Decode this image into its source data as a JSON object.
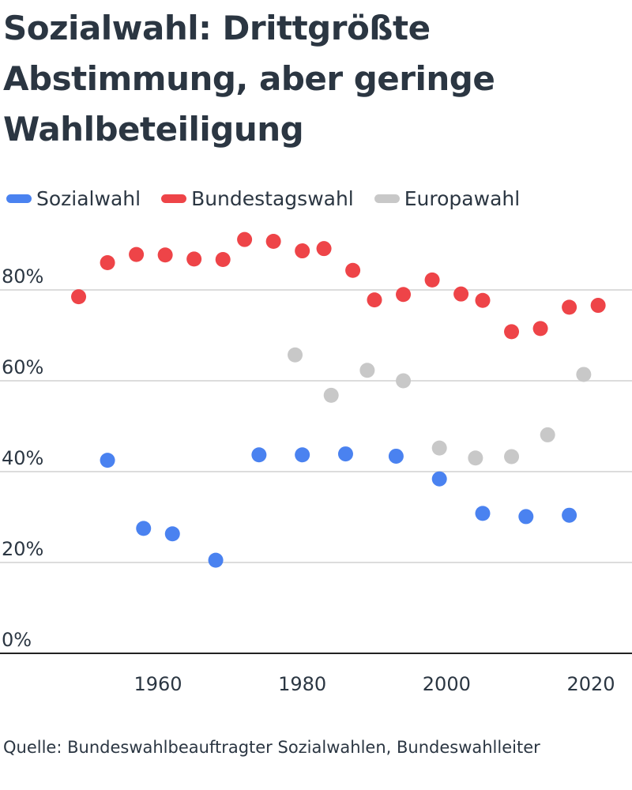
{
  "title": "Sozialwahl: Drittgrößte Abstimmung, aber geringe Wahlbeteiligung",
  "source": "Quelle: Bundeswahlbeauftragter Sozialwahlen, Bundeswahlleiter",
  "colors": {
    "Sozialwahl": "#4a82f0",
    "Bundestagswahl": "#ee4448",
    "Europawahl": "#c8c8c8",
    "grid": "#dcdcdc",
    "axis": "#222222"
  },
  "chart_data": {
    "type": "scatter",
    "title": "Sozialwahl: Drittgrößte Abstimmung, aber geringe Wahlbeteiligung",
    "xlabel": "",
    "ylabel": "",
    "xlim": [
      1945,
      2023
    ],
    "ylim": [
      0,
      90
    ],
    "x_ticks": [
      1960,
      1980,
      2000,
      2020
    ],
    "y_ticks": [
      {
        "value": 0,
        "label": "0%"
      },
      {
        "value": 20,
        "label": "20%"
      },
      {
        "value": 40,
        "label": "40%"
      },
      {
        "value": 60,
        "label": "60%"
      },
      {
        "value": 80,
        "label": "80%"
      }
    ],
    "grid": true,
    "legend_position": "top-left",
    "series": [
      {
        "name": "Sozialwahl",
        "points": [
          {
            "x": 1953,
            "y": 42.5
          },
          {
            "x": 1958,
            "y": 27.5
          },
          {
            "x": 1962,
            "y": 26.3
          },
          {
            "x": 1968,
            "y": 20.5
          },
          {
            "x": 1974,
            "y": 43.7
          },
          {
            "x": 1980,
            "y": 43.7
          },
          {
            "x": 1986,
            "y": 43.9
          },
          {
            "x": 1993,
            "y": 43.4
          },
          {
            "x": 1999,
            "y": 38.4
          },
          {
            "x": 2005,
            "y": 30.8
          },
          {
            "x": 2011,
            "y": 30.1
          },
          {
            "x": 2017,
            "y": 30.4
          }
        ]
      },
      {
        "name": "Bundestagswahl",
        "points": [
          {
            "x": 1949,
            "y": 78.5
          },
          {
            "x": 1953,
            "y": 86.0
          },
          {
            "x": 1957,
            "y": 87.8
          },
          {
            "x": 1961,
            "y": 87.7
          },
          {
            "x": 1965,
            "y": 86.8
          },
          {
            "x": 1969,
            "y": 86.7
          },
          {
            "x": 1972,
            "y": 91.1
          },
          {
            "x": 1976,
            "y": 90.7
          },
          {
            "x": 1980,
            "y": 88.6
          },
          {
            "x": 1983,
            "y": 89.1
          },
          {
            "x": 1987,
            "y": 84.3
          },
          {
            "x": 1990,
            "y": 77.8
          },
          {
            "x": 1994,
            "y": 79.0
          },
          {
            "x": 1998,
            "y": 82.2
          },
          {
            "x": 2002,
            "y": 79.1
          },
          {
            "x": 2005,
            "y": 77.7
          },
          {
            "x": 2009,
            "y": 70.8
          },
          {
            "x": 2013,
            "y": 71.5
          },
          {
            "x": 2017,
            "y": 76.2
          },
          {
            "x": 2021,
            "y": 76.6
          }
        ]
      },
      {
        "name": "Europawahl",
        "points": [
          {
            "x": 1979,
            "y": 65.7
          },
          {
            "x": 1984,
            "y": 56.8
          },
          {
            "x": 1989,
            "y": 62.3
          },
          {
            "x": 1994,
            "y": 60.0
          },
          {
            "x": 1999,
            "y": 45.2
          },
          {
            "x": 2004,
            "y": 43.0
          },
          {
            "x": 2009,
            "y": 43.3
          },
          {
            "x": 2014,
            "y": 48.1
          },
          {
            "x": 2019,
            "y": 61.4
          }
        ]
      }
    ]
  }
}
